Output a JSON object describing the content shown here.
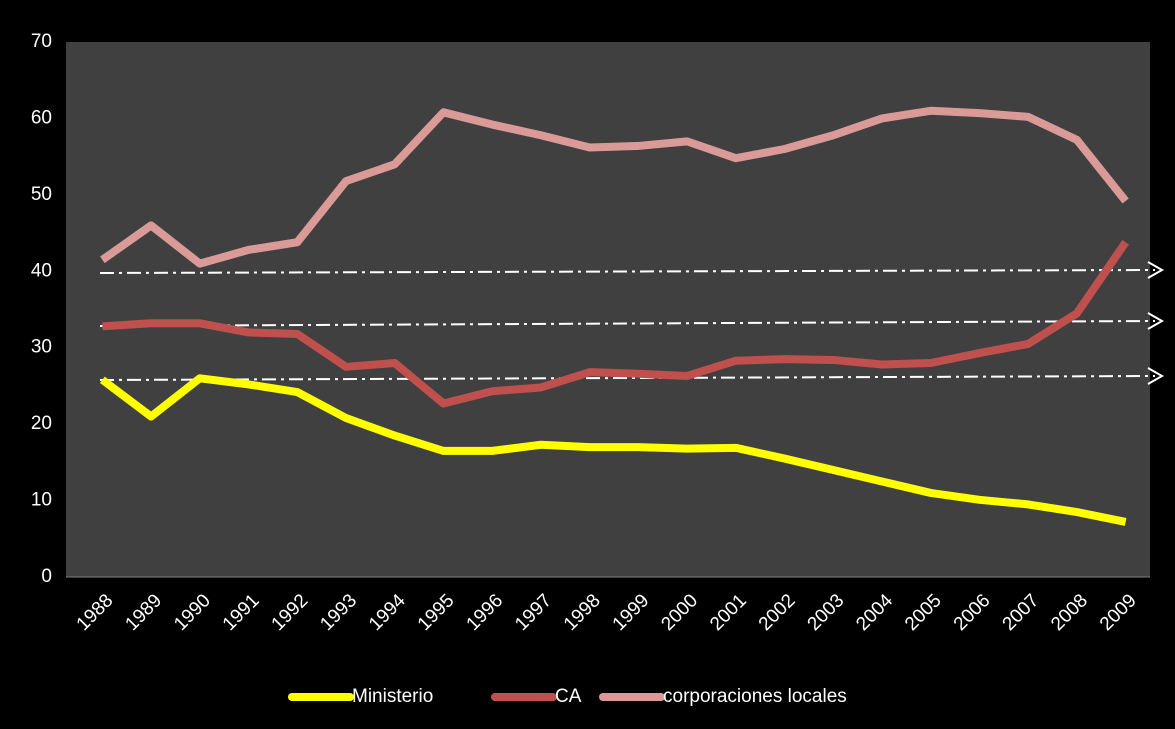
{
  "chart_data": {
    "type": "line",
    "categories": [
      "1988",
      "1989",
      "1990",
      "1991",
      "1992",
      "1993",
      "1994",
      "1995",
      "1996",
      "1997",
      "1998",
      "1999",
      "2000",
      "2001",
      "2002",
      "2003",
      "2004",
      "2005",
      "2006",
      "2007",
      "2008",
      "2009"
    ],
    "series": [
      {
        "name": "Ministerio",
        "color": "#ffff00",
        "values": [
          25.8,
          21,
          26,
          25.2,
          24.2,
          20.8,
          18.5,
          16.5,
          16.5,
          17.3,
          17,
          17,
          16.8,
          16.9,
          15.5,
          14,
          12.5,
          11,
          10.1,
          9.5,
          8.5,
          7.2
        ]
      },
      {
        "name": "CA",
        "color": "#c0504d",
        "values": [
          32.8,
          33.2,
          33.2,
          32,
          31.8,
          27.5,
          28,
          22.7,
          24.3,
          24.8,
          26.8,
          26.6,
          26.3,
          28.3,
          28.5,
          28.4,
          27.8,
          28,
          29.3,
          30.5,
          34.5,
          43.8
        ]
      },
      {
        "name": "corporaciones locales",
        "color": "#d99a98",
        "values": [
          41.5,
          46,
          41,
          42.8,
          43.8,
          51.8,
          54,
          60.8,
          59.2,
          57.8,
          56.2,
          56.4,
          57,
          54.8,
          56,
          57.8,
          60,
          61,
          60.7,
          60.2,
          57.2,
          49.2
        ]
      }
    ],
    "ylim": [
      0,
      70
    ],
    "yticks": [
      0,
      10,
      20,
      30,
      40,
      50,
      60,
      70
    ],
    "grid": false
  }
}
